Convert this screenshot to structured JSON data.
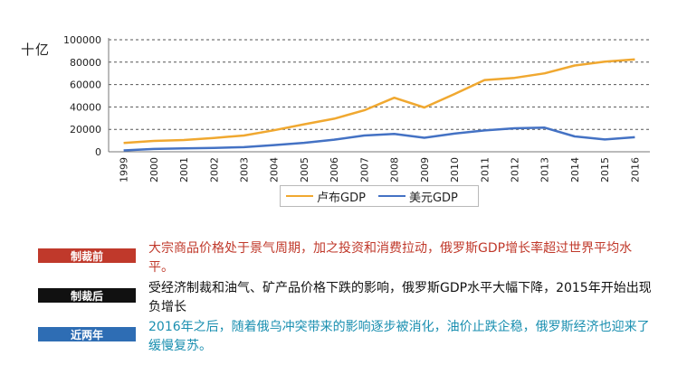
{
  "unit_label": "十亿",
  "chart_data": {
    "type": "line",
    "x": [
      "1999",
      "2000",
      "2001",
      "2002",
      "2003",
      "2004",
      "2005",
      "2006",
      "2007",
      "2008",
      "2009",
      "2010",
      "2011",
      "2012",
      "2013",
      "2014",
      "2015",
      "2016"
    ],
    "series": [
      {
        "name": "卢布GDP",
        "color": "#f0a830",
        "values": [
          7800,
          9700,
          10500,
          12300,
          14500,
          19200,
          24500,
          29500,
          37000,
          48200,
          39500,
          51500,
          64000,
          66000,
          70000,
          77000,
          80500,
          82500
        ]
      },
      {
        "name": "美元GDP",
        "color": "#4472c4",
        "values": [
          1200,
          2500,
          3000,
          3500,
          4100,
          6000,
          8000,
          10800,
          14500,
          16000,
          12500,
          16200,
          19000,
          21000,
          21500,
          13700,
          11000,
          13000
        ]
      }
    ],
    "yticks": [
      "0",
      "20000",
      "40000",
      "60000",
      "80000",
      "100000"
    ],
    "ylim": [
      0,
      100000
    ],
    "grid": true,
    "legend": "bottom"
  },
  "notes": [
    {
      "badge": "制裁前",
      "badge_color": "#c0392b",
      "text_color": "#c0392b",
      "text": "大宗商品价格处于景气周期，加之投资和消费拉动，俄罗斯GDP增长率超过世界平均水平。"
    },
    {
      "badge": "制裁后",
      "badge_color": "#111111",
      "text_color": "#111111",
      "text": "受经济制裁和油气、矿产品价格下跌的影响，俄罗斯GDP水平大幅下降，2015年开始出现负增长"
    },
    {
      "badge": "近两年",
      "badge_color": "#2e6db4",
      "text_color": "#1a8fb0",
      "text": "2016年之后，随着俄乌冲突带来的影响逐步被消化，油价止跌企稳，俄罗斯经济也迎来了缓慢复苏。"
    }
  ]
}
